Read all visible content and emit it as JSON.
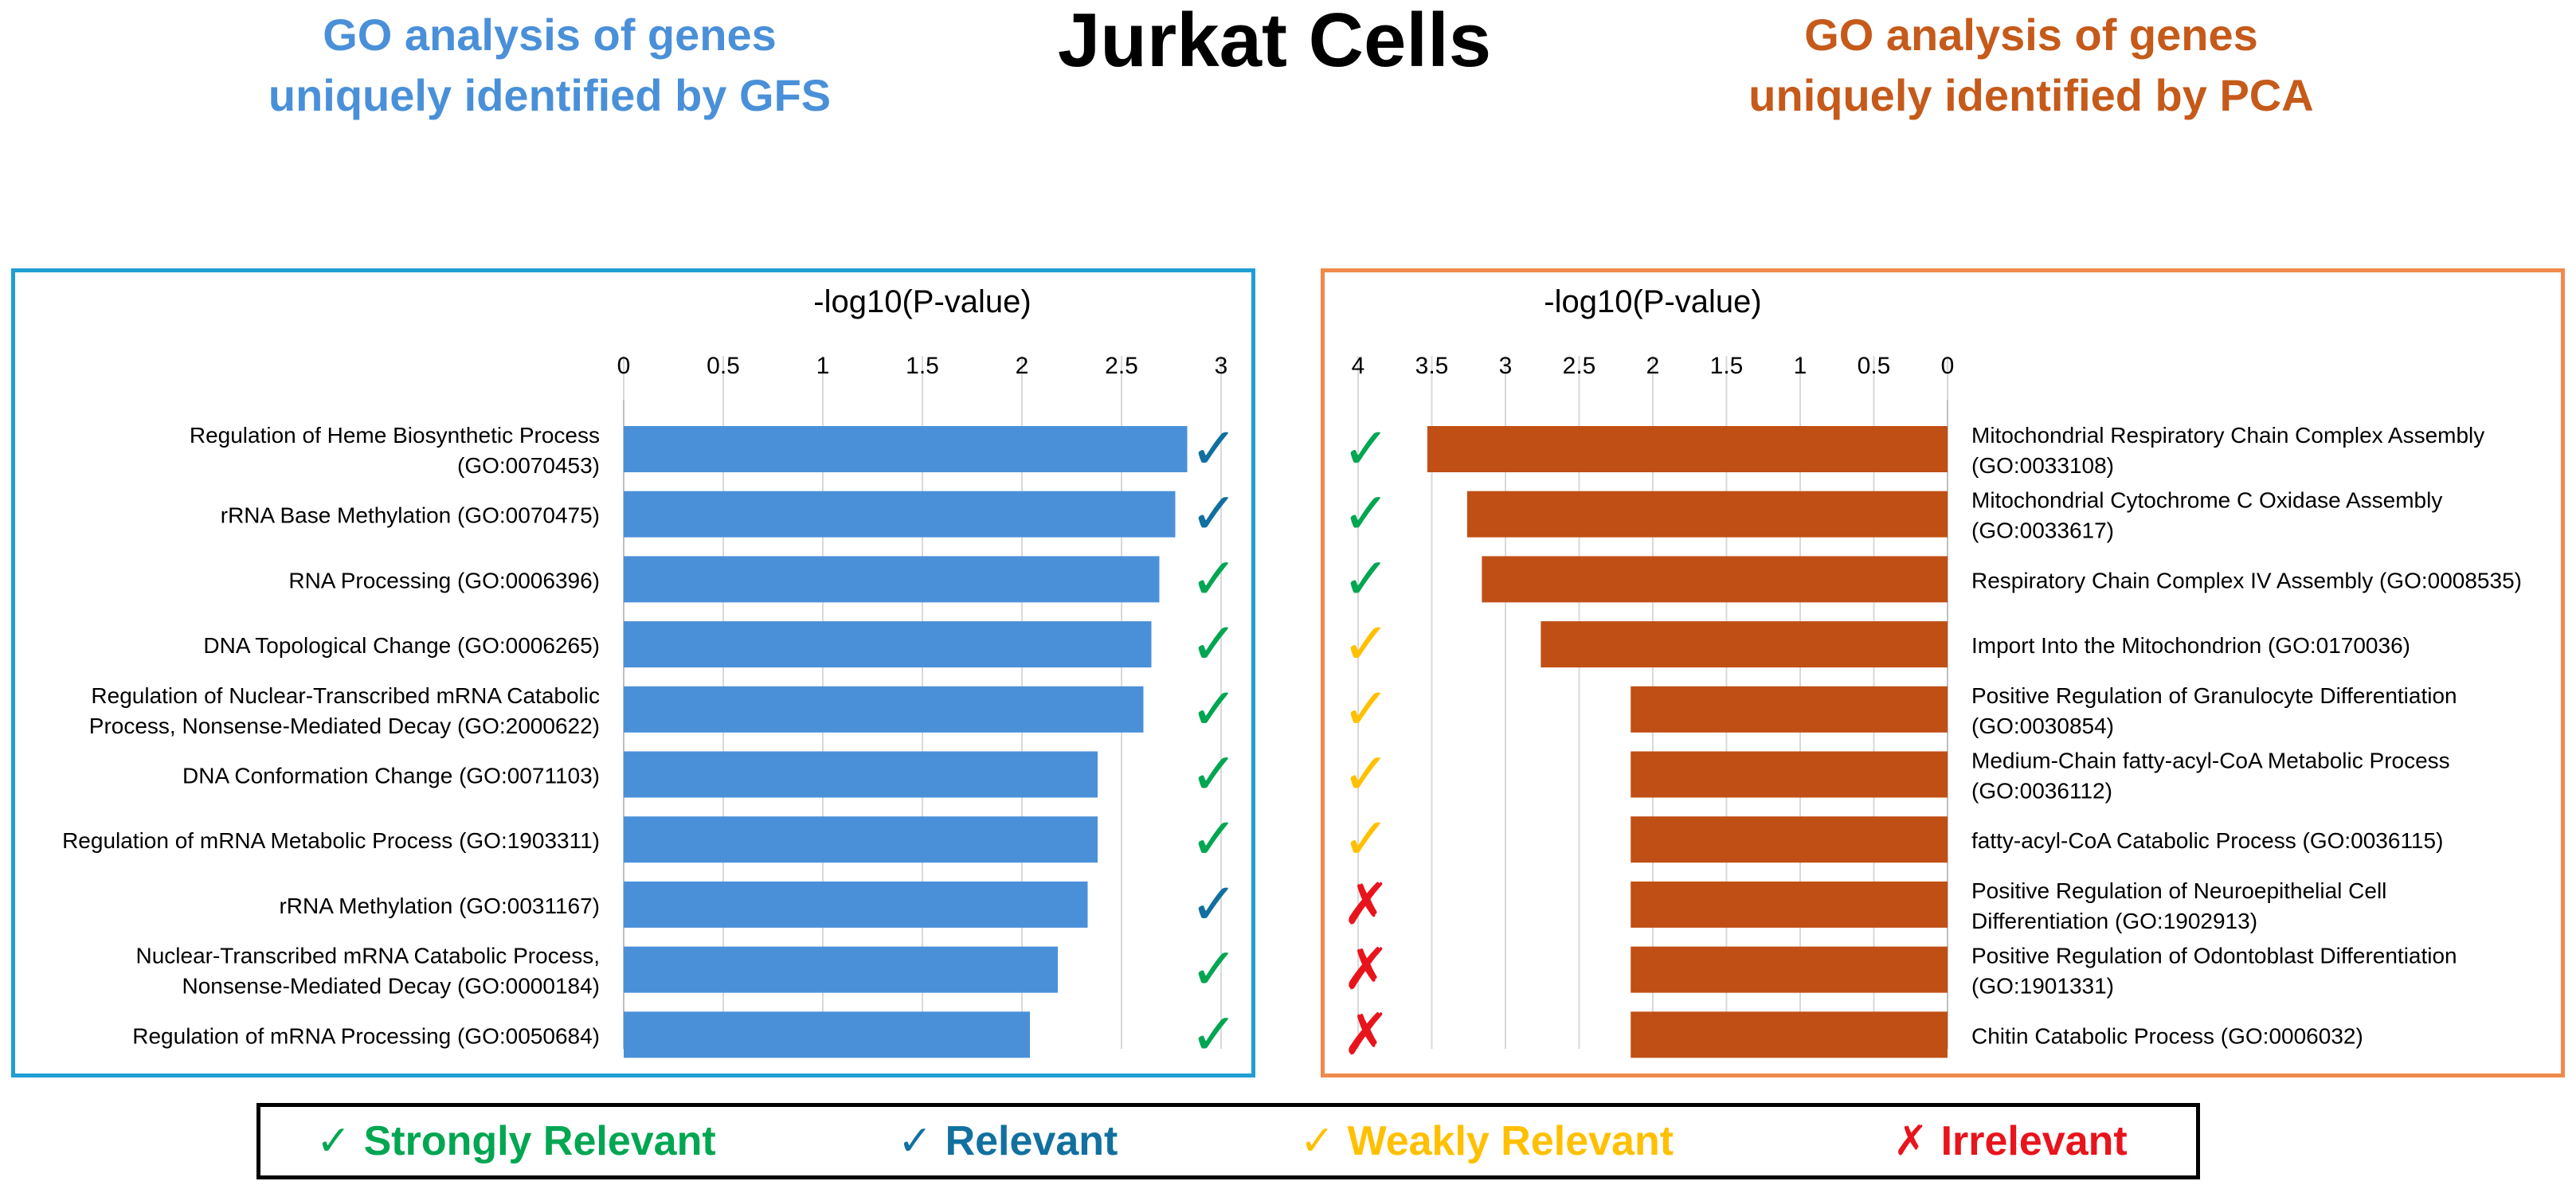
{
  "main_title": "Jurkat Cells",
  "left_heading": [
    "GO analysis of genes",
    "uniquely identified by GFS"
  ],
  "right_heading": [
    "GO analysis of genes",
    "uniquely identified by PCA"
  ],
  "colors": {
    "left_bar": "#4a90d9",
    "right_bar": "#c04f15",
    "strongly_relevant": "#00a651",
    "relevant": "#1170a0",
    "weakly_relevant": "#ffc000",
    "irrelevant": "#e8141c"
  },
  "legend": [
    {
      "key": "strongly_relevant",
      "symbol": "✓",
      "label": "Strongly Relevant"
    },
    {
      "key": "relevant",
      "symbol": "✓",
      "label": "Relevant"
    },
    {
      "key": "weakly_relevant",
      "symbol": "✓",
      "label": "Weakly Relevant"
    },
    {
      "key": "irrelevant",
      "symbol": "✗",
      "label": "Irrelevant"
    }
  ],
  "chart_data": [
    {
      "type": "bar",
      "orientation": "horizontal",
      "title": "-log10(P-value)",
      "xlim": [
        0,
        3
      ],
      "ticks": [
        "0",
        "0.5",
        "1",
        "1.5",
        "2",
        "2.5",
        "3"
      ],
      "x_reversed": false,
      "categories": [
        [
          "Regulation of Heme Biosynthetic Process",
          "(GO:0070453)"
        ],
        [
          "rRNA Base Methylation (GO:0070475)"
        ],
        [
          "RNA Processing (GO:0006396)"
        ],
        [
          "DNA Topological Change (GO:0006265)"
        ],
        [
          "Regulation of Nuclear-Transcribed mRNA Catabolic",
          "Process, Nonsense-Mediated Decay (GO:2000622)"
        ],
        [
          "DNA Conformation Change (GO:0071103)"
        ],
        [
          "Regulation of mRNA Metabolic Process (GO:1903311)"
        ],
        [
          "rRNA Methylation (GO:0031167)"
        ],
        [
          "Nuclear-Transcribed mRNA Catabolic Process,",
          "Nonsense-Mediated Decay (GO:0000184)"
        ],
        [
          "Regulation of mRNA Processing (GO:0050684)"
        ]
      ],
      "values": [
        2.83,
        2.77,
        2.69,
        2.65,
        2.61,
        2.38,
        2.38,
        2.33,
        2.18,
        2.04
      ],
      "relevance": [
        "relevant",
        "relevant",
        "strongly_relevant",
        "strongly_relevant",
        "strongly_relevant",
        "strongly_relevant",
        "strongly_relevant",
        "relevant",
        "strongly_relevant",
        "strongly_relevant"
      ]
    },
    {
      "type": "bar",
      "orientation": "horizontal",
      "title": "-log10(P-value)",
      "xlim": [
        0,
        4
      ],
      "ticks": [
        "4",
        "3.5",
        "3",
        "2.5",
        "2",
        "1.5",
        "1",
        "0.5",
        "0"
      ],
      "x_reversed": true,
      "categories": [
        [
          "Mitochondrial Respiratory Chain Complex Assembly",
          "(GO:0033108)"
        ],
        [
          "Mitochondrial Cytochrome C Oxidase Assembly",
          "(GO:0033617)"
        ],
        [
          "Respiratory Chain Complex IV Assembly (GO:0008535)"
        ],
        [
          "Import Into the Mitochondrion (GO:0170036)"
        ],
        [
          "Positive Regulation of Granulocyte Differentiation",
          "(GO:0030854)"
        ],
        [
          "Medium-Chain fatty-acyl-CoA Metabolic Process",
          "(GO:0036112)"
        ],
        [
          "fatty-acyl-CoA Catabolic Process (GO:0036115)"
        ],
        [
          "Positive Regulation of Neuroepithelial Cell",
          "Differentiation (GO:1902913)"
        ],
        [
          "Positive Regulation of Odontoblast Differentiation",
          "(GO:1901331)"
        ],
        [
          "Chitin Catabolic Process (GO:0006032)"
        ]
      ],
      "values": [
        3.53,
        3.26,
        3.16,
        2.76,
        2.15,
        2.15,
        2.15,
        2.15,
        2.15,
        2.15
      ],
      "relevance": [
        "strongly_relevant",
        "strongly_relevant",
        "strongly_relevant",
        "weakly_relevant",
        "weakly_relevant",
        "weakly_relevant",
        "weakly_relevant",
        "irrelevant",
        "irrelevant",
        "irrelevant"
      ]
    }
  ]
}
